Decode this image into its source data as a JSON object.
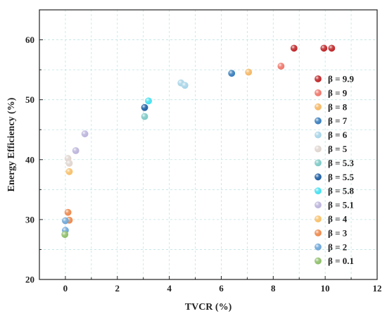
{
  "chart_data": {
    "type": "scatter",
    "title": "",
    "xlabel": "TVCR (%)",
    "ylabel": "Energy Efficiency (%)",
    "xlim": [
      -1,
      12
    ],
    "ylim": [
      20,
      65
    ],
    "xticks": [
      0,
      2,
      4,
      6,
      8,
      10,
      12
    ],
    "yticks": [
      20,
      30,
      40,
      50,
      60
    ],
    "grid": true,
    "legend_position": "right",
    "series": [
      {
        "name": "β = 9.9",
        "color": "#c0282b",
        "points": [
          [
            8.8,
            58.6
          ],
          [
            9.95,
            58.6
          ],
          [
            10.25,
            58.6
          ]
        ]
      },
      {
        "name": "β = 9",
        "color": "#f0786c",
        "points": [
          [
            8.3,
            55.6
          ]
        ]
      },
      {
        "name": "β = 8",
        "color": "#f5b866",
        "points": [
          [
            7.05,
            54.6
          ]
        ]
      },
      {
        "name": "β = 7",
        "color": "#3a7fbd",
        "points": [
          [
            6.4,
            54.4
          ]
        ]
      },
      {
        "name": "β = 6",
        "color": "#a9d5e8",
        "points": [
          [
            4.45,
            52.8
          ],
          [
            4.6,
            52.4
          ]
        ]
      },
      {
        "name": "β = 5",
        "color": "#e0d5cf",
        "points": [
          [
            0.1,
            40.2
          ],
          [
            0.15,
            39.4
          ]
        ]
      },
      {
        "name": "β = 5.3",
        "color": "#7fcac7",
        "points": [
          [
            3.05,
            47.2
          ]
        ]
      },
      {
        "name": "β = 5.5",
        "color": "#1f5fa3",
        "points": [
          [
            3.05,
            48.7
          ]
        ]
      },
      {
        "name": "β = 5.8",
        "color": "#46e0f0",
        "points": [
          [
            3.2,
            49.8
          ]
        ]
      },
      {
        "name": "β = 5.1",
        "color": "#bdb5dc",
        "points": [
          [
            0.75,
            44.3
          ],
          [
            0.4,
            41.5
          ]
        ]
      },
      {
        "name": "β = 4",
        "color": "#f8c06a",
        "points": [
          [
            0.15,
            38.0
          ]
        ]
      },
      {
        "name": "β = 3",
        "color": "#ee8a4e",
        "points": [
          [
            0.1,
            31.2
          ],
          [
            0.15,
            29.9
          ]
        ]
      },
      {
        "name": "β = 2",
        "color": "#6ea7d8",
        "points": [
          [
            0.0,
            29.8
          ],
          [
            0.0,
            28.2
          ]
        ]
      },
      {
        "name": "β = 0.1",
        "color": "#8fbf6a",
        "points": [
          [
            -0.02,
            27.5
          ]
        ]
      }
    ]
  }
}
